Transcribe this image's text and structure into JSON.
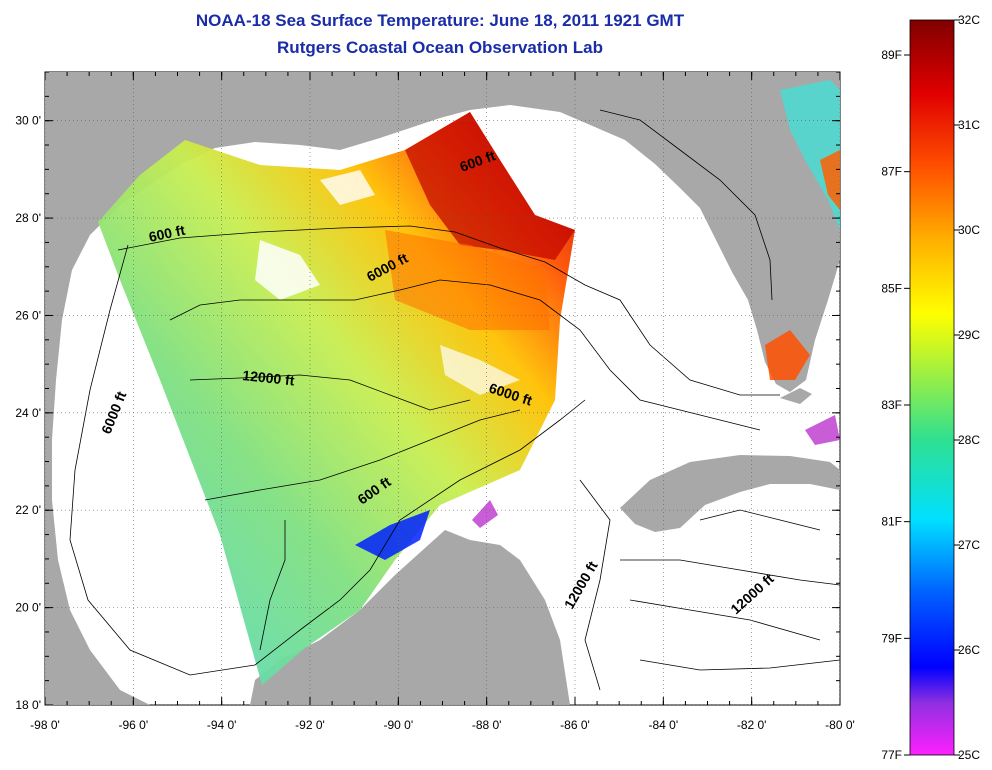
{
  "title": "NOAA-18 Sea Surface Temperature:  June 18, 2011 1921 GMT",
  "subtitle": "Rutgers Coastal Ocean Observation Lab",
  "map": {
    "x_ticks": [
      "-98 0'",
      "-96 0'",
      "-94 0'",
      "-92 0'",
      "-90 0'",
      "-88 0'",
      "-86 0'",
      "-84 0'",
      "-82 0'",
      "-80 0'"
    ],
    "y_ticks": [
      "30 0'",
      "28 0'",
      "26 0'",
      "24 0'",
      "22 0'",
      "20 0'",
      "18 0'"
    ],
    "lon_range": [
      -98,
      -80
    ],
    "lat_range": [
      18,
      31
    ],
    "contour_labels": [
      "600 ft",
      "600 ft",
      "600 ft",
      "6000 ft",
      "6000 ft",
      "6000 ft",
      "12000 ft",
      "12000 ft",
      "12000 ft"
    ],
    "colors": {
      "land": "#a8a8a8",
      "ocean_no_data": "#ffffff",
      "title": "#1a2ca8"
    }
  },
  "colorbar": {
    "celsius_labels": [
      "32C",
      "31C",
      "30C",
      "29C",
      "28C",
      "27C",
      "26C",
      "25C"
    ],
    "fahrenheit_labels": [
      "89F",
      "87F",
      "85F",
      "83F",
      "81F",
      "79F",
      "77F"
    ],
    "range_c": [
      25,
      32
    ]
  }
}
